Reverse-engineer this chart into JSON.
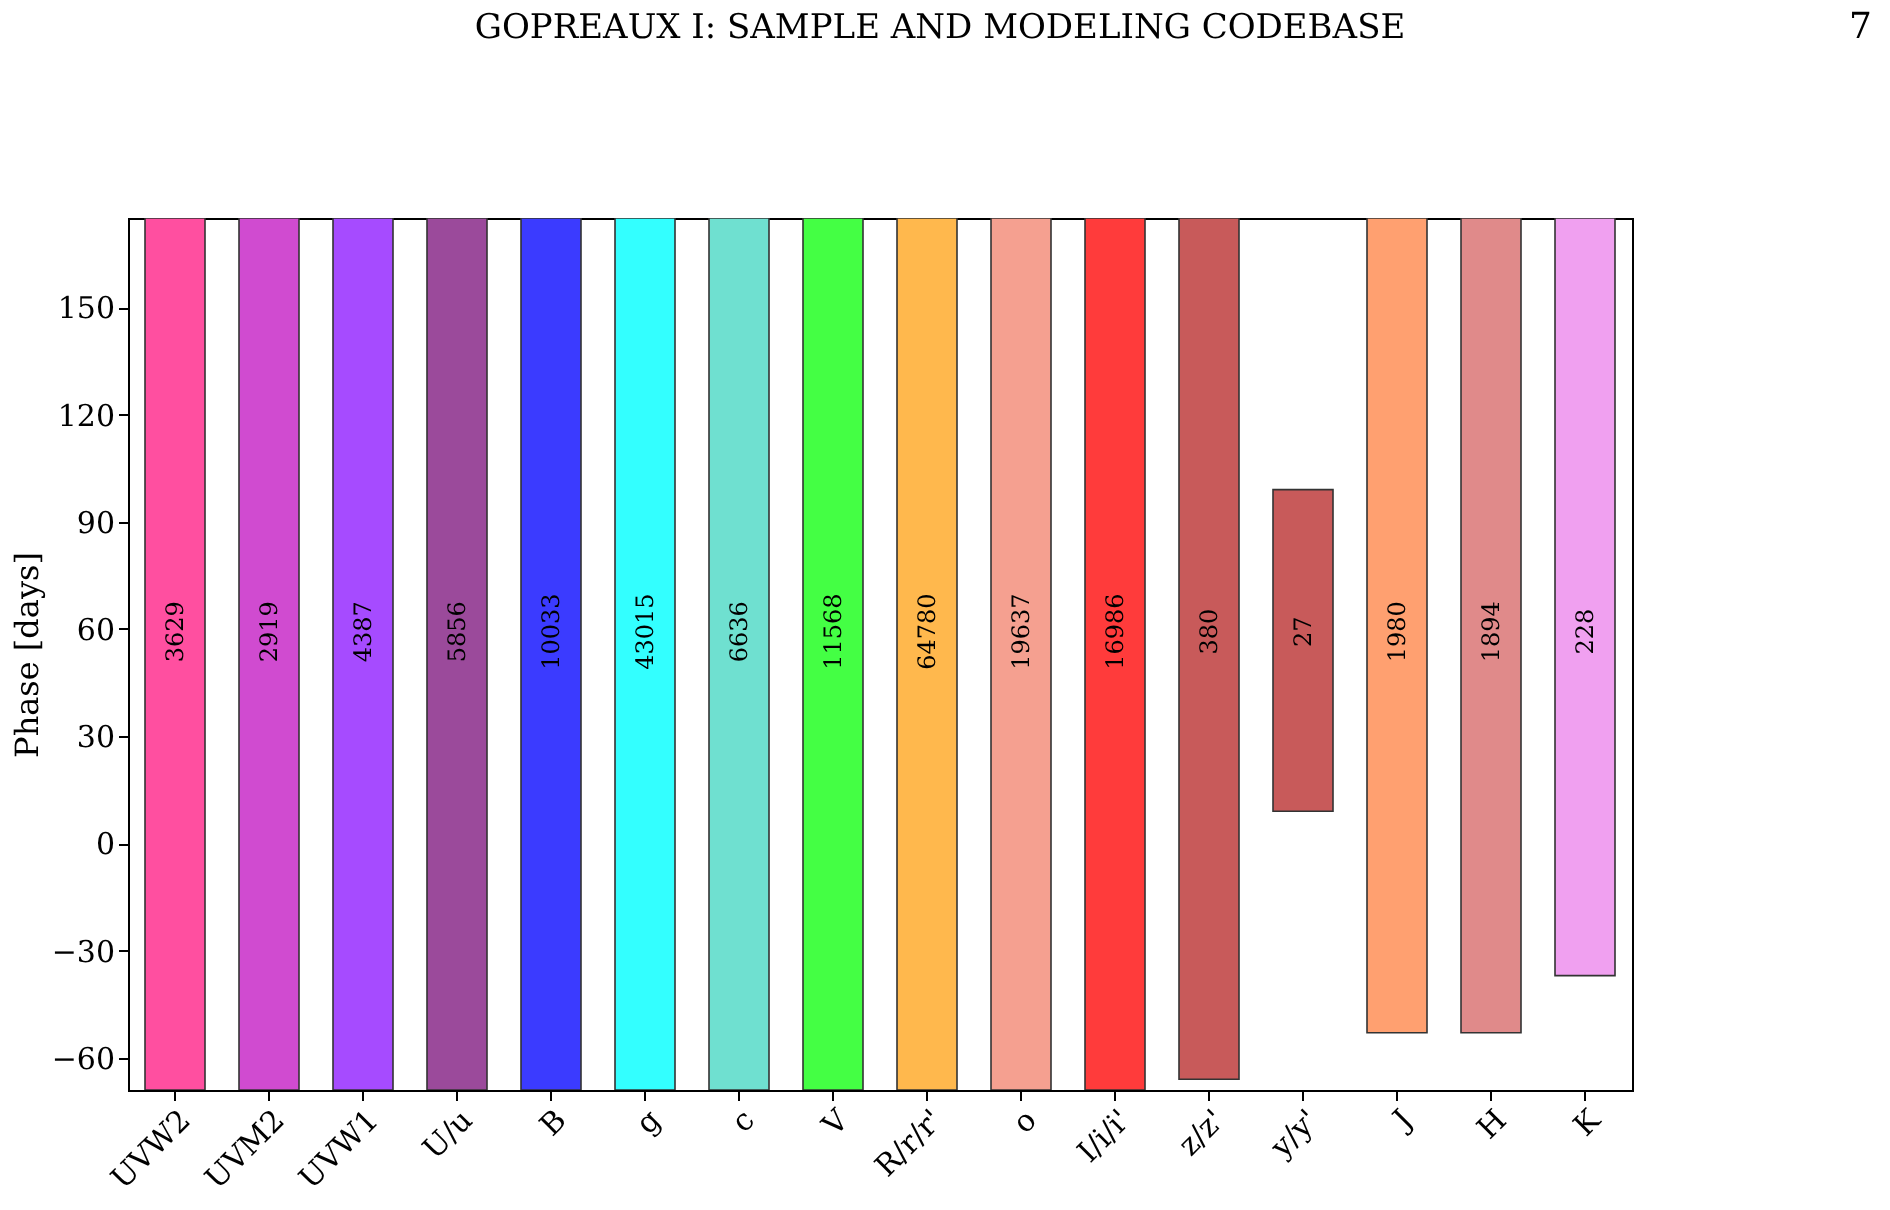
{
  "chart_data": {
    "type": "bar",
    "title": "GOPREAUX I: SAMPLE AND MODELING CODEBASE",
    "ylabel": "Phase [days]",
    "categories": [
      "UVW2",
      "UVM2",
      "UVW1",
      "U/u",
      "B",
      "g",
      "c",
      "V",
      "R/r/r'",
      "o",
      "I/i/i'",
      "z/z'",
      "y/y'",
      "J",
      "H",
      "K"
    ],
    "base": [
      -69,
      -69,
      -69,
      -69,
      -69,
      -69,
      -69,
      -69,
      -69,
      -69,
      -69,
      -66,
      9,
      -53,
      -53,
      -37
    ],
    "values": [
      244,
      244,
      244,
      244,
      244,
      244,
      244,
      244,
      244,
      244,
      244,
      241,
      90,
      228,
      228,
      212
    ],
    "colors": [
      "#ff4fa0",
      "#d04bd0",
      "#a64bff",
      "#9b4a9b",
      "#3b3bff",
      "#33ffff",
      "#6fe0d0",
      "#44ff44",
      "#ffb84d",
      "#f5a090",
      "#ff3b3b",
      "#c85a5a",
      "#c85a5a",
      "#ffa070",
      "#e08a8a",
      "#f0a0f0"
    ],
    "ylim": [
      -69,
      175
    ],
    "yticks": [
      -60,
      -30,
      0,
      30,
      60,
      90,
      120,
      150
    ],
    "annotations": [
      "7",
      "3629",
      "2919",
      "4387",
      "5856",
      "10033",
      "43015",
      "6636",
      "11568",
      "64780",
      "19637",
      "16986",
      "380",
      "27",
      "1980",
      "1894",
      "228"
    ]
  }
}
